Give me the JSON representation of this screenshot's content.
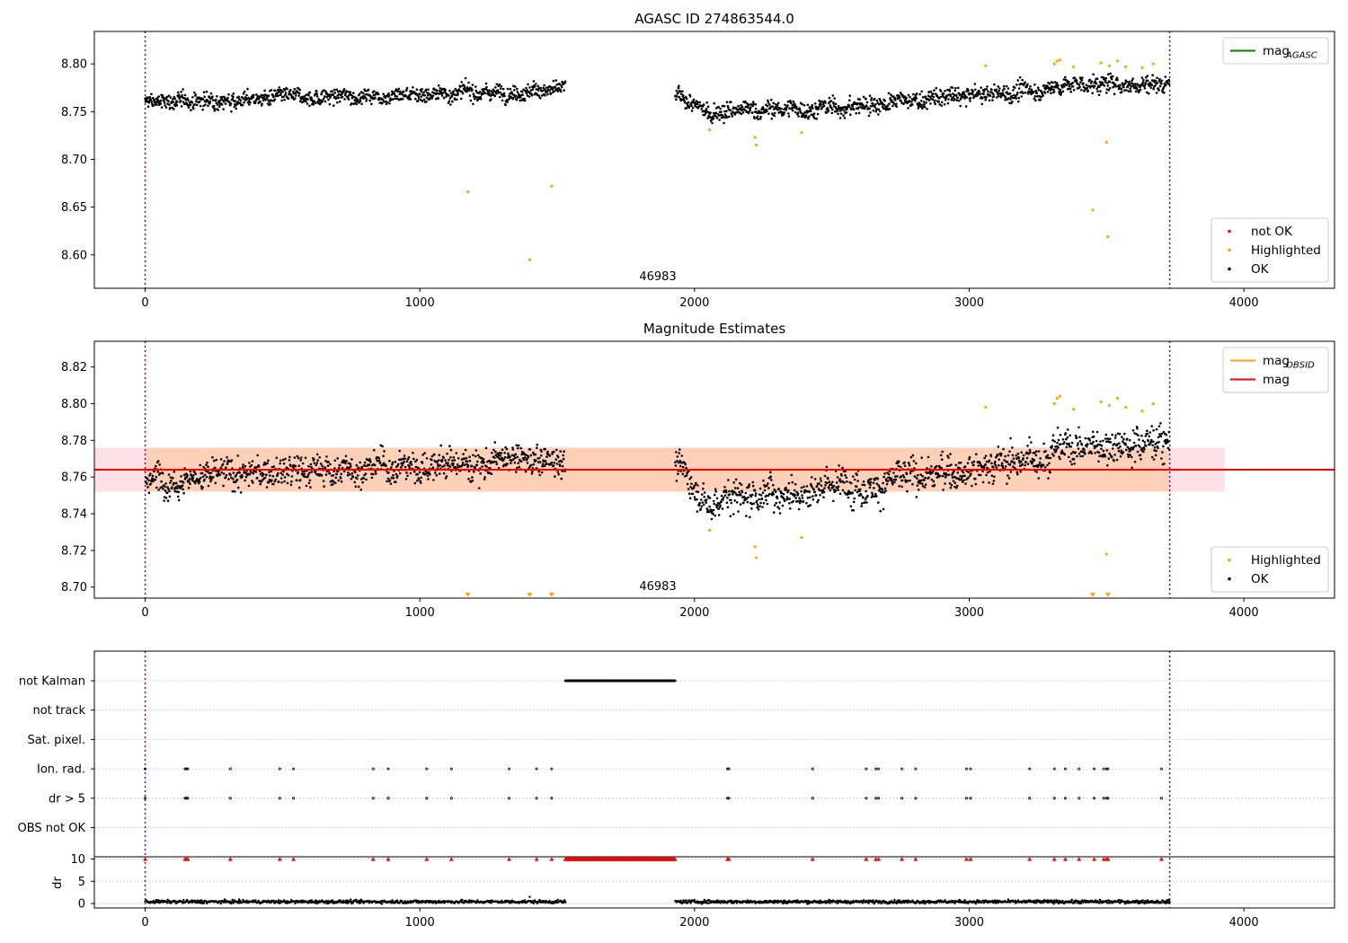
{
  "colors": {
    "ok": "#000000",
    "highlighted": "#ffa500",
    "not_ok": "#ff0000",
    "mag_agasc": "#008000",
    "mag_obsid": "#ffa500",
    "mag_mean": "#ff0000",
    "band_inner": "#ffd0b8",
    "band_outer": "#ffe0e6",
    "interval_line": "#800080",
    "grid": "#b0b0b0"
  },
  "chart_data": [
    {
      "type": "scatter",
      "title": "AGASC ID 274863544.0",
      "xlabel": "",
      "ylabel": "",
      "xlim": [
        -185,
        4330
      ],
      "ylim": [
        8.565,
        8.834
      ],
      "xticks": [
        0,
        1000,
        2000,
        3000,
        4000
      ],
      "yticks": [
        8.6,
        8.65,
        8.7,
        8.75,
        8.8
      ],
      "ytick_labels": [
        "8.60",
        "8.65",
        "8.70",
        "8.75",
        "8.80"
      ],
      "annotation": "46983",
      "annotation_x": 1860,
      "interval_lines_x": [
        0,
        3730
      ],
      "legend_top": {
        "placement": "top-right",
        "entries": [
          {
            "label": "mag",
            "sub": "AGASC",
            "color": "#008000"
          }
        ]
      },
      "legend_bottom": {
        "placement": "bottom-right",
        "entries": [
          {
            "label": "not OK",
            "color": "#ff0000"
          },
          {
            "label": "Highlighted",
            "color": "#ffa500"
          },
          {
            "label": "OK",
            "color": "#000000"
          }
        ]
      },
      "ok_segments": [
        {
          "x_start": 0,
          "x_end": 1530,
          "mean_start": 8.76,
          "mean_end": 8.773,
          "spread": 0.007
        },
        {
          "x_start": 1930,
          "x_end": 2070,
          "mean_start": 8.768,
          "mean_end": 8.744,
          "spread": 0.007
        },
        {
          "x_start": 2070,
          "x_end": 2600,
          "mean_start": 8.75,
          "mean_end": 8.755,
          "spread": 0.008
        },
        {
          "x_start": 2600,
          "x_end": 3300,
          "mean_start": 8.757,
          "mean_end": 8.774,
          "spread": 0.008
        },
        {
          "x_start": 3300,
          "x_end": 3730,
          "mean_start": 8.778,
          "mean_end": 8.78,
          "spread": 0.008
        }
      ],
      "highlighted_points": [
        {
          "x": 1175,
          "y": 8.666
        },
        {
          "x": 1400,
          "y": 8.595
        },
        {
          "x": 1480,
          "y": 8.672
        },
        {
          "x": 2055,
          "y": 8.731
        },
        {
          "x": 2220,
          "y": 8.723
        },
        {
          "x": 2225,
          "y": 8.715
        },
        {
          "x": 2390,
          "y": 8.728
        },
        {
          "x": 3060,
          "y": 8.798
        },
        {
          "x": 3310,
          "y": 8.8
        },
        {
          "x": 3320,
          "y": 8.803
        },
        {
          "x": 3330,
          "y": 8.804
        },
        {
          "x": 3380,
          "y": 8.797
        },
        {
          "x": 3450,
          "y": 8.647
        },
        {
          "x": 3480,
          "y": 8.801
        },
        {
          "x": 3500,
          "y": 8.718
        },
        {
          "x": 3505,
          "y": 8.619
        },
        {
          "x": 3510,
          "y": 8.798
        },
        {
          "x": 3540,
          "y": 8.803
        },
        {
          "x": 3570,
          "y": 8.797
        },
        {
          "x": 3630,
          "y": 8.796
        },
        {
          "x": 3670,
          "y": 8.8
        }
      ]
    },
    {
      "type": "scatter",
      "title": "Magnitude Estimates",
      "xlabel": "",
      "ylabel": "",
      "xlim": [
        -185,
        4330
      ],
      "ylim": [
        8.694,
        8.834
      ],
      "xticks": [
        0,
        1000,
        2000,
        3000,
        4000
      ],
      "yticks": [
        8.7,
        8.72,
        8.74,
        8.76,
        8.78,
        8.8,
        8.82
      ],
      "ytick_labels": [
        "8.70",
        "8.72",
        "8.74",
        "8.76",
        "8.78",
        "8.80",
        "8.82"
      ],
      "annotation": "46983",
      "annotation_x": 1860,
      "interval_lines_x": [
        0,
        3730
      ],
      "mag_mean": 8.764,
      "mag_band": [
        8.752,
        8.776
      ],
      "band_outer_x": [
        -185,
        3930
      ],
      "band_inner_x": [
        0,
        3730
      ],
      "legend_top": {
        "placement": "top-right",
        "entries": [
          {
            "label": "mag",
            "sub": "OBSID",
            "color": "#ffa500"
          },
          {
            "label": "mag",
            "sub": "",
            "color": "#ff0000"
          }
        ]
      },
      "legend_bottom": {
        "placement": "bottom-right",
        "entries": [
          {
            "label": "Highlighted",
            "color": "#ffa500"
          },
          {
            "label": "OK",
            "color": "#000000"
          }
        ]
      },
      "ok_segments": [
        {
          "x_start": 0,
          "x_end": 1530,
          "mean_start": 8.759,
          "mean_end": 8.77,
          "spread": 0.007
        },
        {
          "x_start": 1930,
          "x_end": 2070,
          "mean_start": 8.768,
          "mean_end": 8.742,
          "spread": 0.007
        },
        {
          "x_start": 2070,
          "x_end": 2600,
          "mean_start": 8.748,
          "mean_end": 8.757,
          "spread": 0.008
        },
        {
          "x_start": 2600,
          "x_end": 3300,
          "mean_start": 8.755,
          "mean_end": 8.772,
          "spread": 0.008
        },
        {
          "x_start": 3300,
          "x_end": 3730,
          "mean_start": 8.776,
          "mean_end": 8.78,
          "spread": 0.008
        }
      ],
      "highlighted_points": [
        {
          "x": 2055,
          "y": 8.731
        },
        {
          "x": 2220,
          "y": 8.722
        },
        {
          "x": 2225,
          "y": 8.716
        },
        {
          "x": 2390,
          "y": 8.727
        },
        {
          "x": 3060,
          "y": 8.798
        },
        {
          "x": 3310,
          "y": 8.8
        },
        {
          "x": 3320,
          "y": 8.803
        },
        {
          "x": 3330,
          "y": 8.804
        },
        {
          "x": 3380,
          "y": 8.797
        },
        {
          "x": 3480,
          "y": 8.801
        },
        {
          "x": 3500,
          "y": 8.718
        },
        {
          "x": 3510,
          "y": 8.799
        },
        {
          "x": 3540,
          "y": 8.803
        },
        {
          "x": 3570,
          "y": 8.798
        },
        {
          "x": 3630,
          "y": 8.796
        },
        {
          "x": 3670,
          "y": 8.8
        }
      ],
      "offscale_markers_x": [
        1175,
        1400,
        1480,
        3450,
        3505
      ]
    },
    {
      "type": "scatter",
      "title": "",
      "xlabel": "",
      "ylabel": "",
      "xlim": [
        -185,
        4330
      ],
      "xticks": [
        0,
        1000,
        2000,
        3000,
        4000
      ],
      "interval_lines_x": [
        0,
        3730
      ],
      "flag_labels": [
        "not Kalman",
        "not track",
        "Sat. pixel.",
        "Ion. rad.",
        "dr > 5",
        "OBS not OK"
      ],
      "flags": {
        "not Kalman": {
          "range": [
            1530,
            1930
          ]
        },
        "not track": {
          "points": []
        },
        "Sat. pixel.": {
          "points": []
        },
        "Ion. rad.": {
          "points": [
            0,
            145,
            150,
            155,
            310,
            490,
            540,
            830,
            885,
            1025,
            1115,
            1325,
            1425,
            1480,
            2120,
            2125,
            2430,
            2625,
            2660,
            2670,
            2755,
            2805,
            2990,
            3005,
            3220,
            3310,
            3350,
            3400,
            3455,
            3490,
            3500,
            3505,
            3700
          ]
        },
        "dr > 5": {
          "points": [
            0,
            145,
            150,
            155,
            310,
            490,
            540,
            830,
            885,
            1025,
            1115,
            1325,
            1425,
            1480,
            2120,
            2125,
            2430,
            2625,
            2660,
            2670,
            2755,
            2805,
            2990,
            3005,
            3220,
            3310,
            3350,
            3400,
            3455,
            3490,
            3500,
            3505,
            3700
          ]
        },
        "OBS not OK": {
          "points": []
        }
      },
      "dr_subplot": {
        "ylabel": "dr",
        "ylim": [
          -1,
          10.5
        ],
        "yticks": [
          0,
          5,
          10
        ],
        "ytick_labels": [
          "0",
          "5",
          "10"
        ],
        "clipped_value": 10,
        "clipped_x": [
          0,
          145,
          150,
          155,
          310,
          490,
          540,
          830,
          885,
          1025,
          1115,
          1325,
          1425,
          1480,
          2120,
          2125,
          2430,
          2625,
          2660,
          2670,
          2755,
          2805,
          2990,
          3005,
          3220,
          3310,
          3350,
          3400,
          3455,
          3490,
          3500,
          3505,
          3700
        ],
        "clipped_range": [
          1530,
          1930
        ],
        "normal_level": 0.4,
        "outlier_points": [
          {
            "x": 1400,
            "y": 1.5
          }
        ]
      }
    }
  ]
}
